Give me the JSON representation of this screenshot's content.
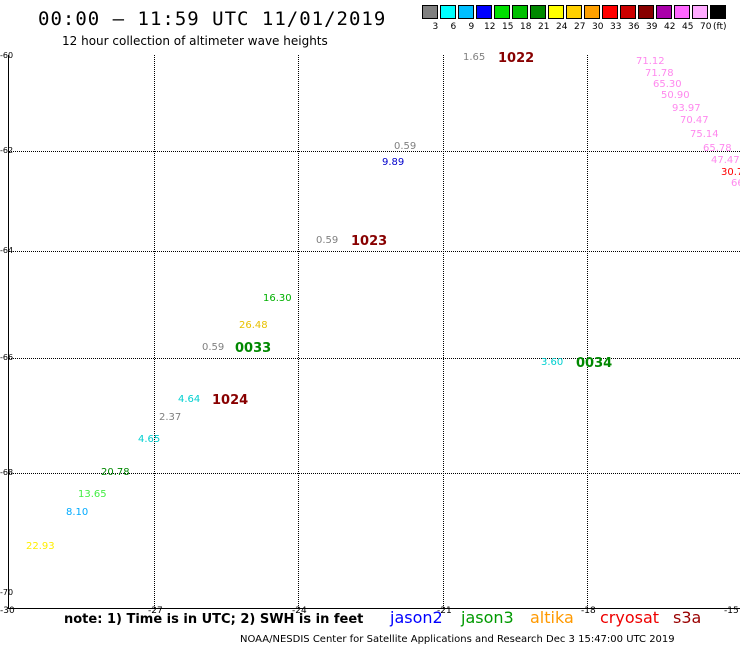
{
  "header": {
    "title": "00:00 – 11:59 UTC 11/01/2019",
    "subtitle": "12 hour collection of altimeter wave heights"
  },
  "legend": {
    "colors": [
      "#808080",
      "#00ffff",
      "#00bfff",
      "#0000ff",
      "#00e000",
      "#00c000",
      "#008800",
      "#ffff00",
      "#ffd000",
      "#ffa000",
      "#ff0000",
      "#cc0000",
      "#880000",
      "#aa00aa",
      "#ff66ff",
      "#ffaaff",
      "#000000"
    ],
    "labels": [
      "3",
      "6",
      "9",
      "12",
      "15",
      "18",
      "21",
      "24",
      "27",
      "30",
      "33",
      "36",
      "39",
      "42",
      "45",
      "70",
      "(ft)"
    ]
  },
  "axes": {
    "lat_labels": [
      "-60",
      "-62",
      "-64",
      "-66",
      "-68",
      "-70"
    ],
    "lon_labels": [
      "-30",
      "-27",
      "-24",
      "-21",
      "-18",
      "-15"
    ]
  },
  "observations": [
    {
      "text": "1.65",
      "color": "#808080"
    },
    {
      "text": "71.12",
      "color": "#ff88ee"
    },
    {
      "text": "71.78",
      "color": "#ff88ee"
    },
    {
      "text": "65.30",
      "color": "#ff88ee"
    },
    {
      "text": "50.90",
      "color": "#ff88ee"
    },
    {
      "text": "93.97",
      "color": "#ff88ee"
    },
    {
      "text": "70.47",
      "color": "#ff88ee"
    },
    {
      "text": "75.14",
      "color": "#ff88ee"
    },
    {
      "text": "65.78",
      "color": "#ff88ee"
    },
    {
      "text": "47.47",
      "color": "#ff88ee"
    },
    {
      "text": "30.7",
      "color": "#ff0000"
    },
    {
      "text": "66",
      "color": "#ff88ee"
    },
    {
      "text": "0.59",
      "color": "#808080"
    },
    {
      "text": "9.89",
      "color": "#0000cc"
    },
    {
      "text": "0.59",
      "color": "#808080"
    },
    {
      "text": "16.30",
      "color": "#00b000"
    },
    {
      "text": "26.48",
      "color": "#e8c000"
    },
    {
      "text": "0.59",
      "color": "#808080"
    },
    {
      "text": "3.60",
      "color": "#00d0d0"
    },
    {
      "text": "4.64",
      "color": "#00d0d0"
    },
    {
      "text": "2.37",
      "color": "#808080"
    },
    {
      "text": "4.65",
      "color": "#00d0d0"
    },
    {
      "text": "20.78",
      "color": "#008800"
    },
    {
      "text": "13.65",
      "color": "#44ee44"
    },
    {
      "text": "8.10",
      "color": "#00aaff"
    },
    {
      "text": "22.93",
      "color": "#ffee00"
    }
  ],
  "passes": [
    {
      "text": "1022",
      "color": "#880000"
    },
    {
      "text": "1023",
      "color": "#880000"
    },
    {
      "text": "0033",
      "color": "#008800"
    },
    {
      "text": "0034",
      "color": "#008800"
    },
    {
      "text": "1024",
      "color": "#880000"
    }
  ],
  "footer": {
    "note": "note: 1) Time is in UTC; 2) SWH is in feet",
    "satellites": [
      {
        "name": "jason2",
        "color": "#0000ff"
      },
      {
        "name": "jason3",
        "color": "#009900"
      },
      {
        "name": "altika",
        "color": "#ff9900"
      },
      {
        "name": "cryosat",
        "color": "#ee0000"
      },
      {
        "name": "s3a",
        "color": "#990000"
      }
    ],
    "credit": "NOAA/NESDIS Center for Satellite Applications and Research    Dec  3 15:47:00 UTC 2019"
  }
}
